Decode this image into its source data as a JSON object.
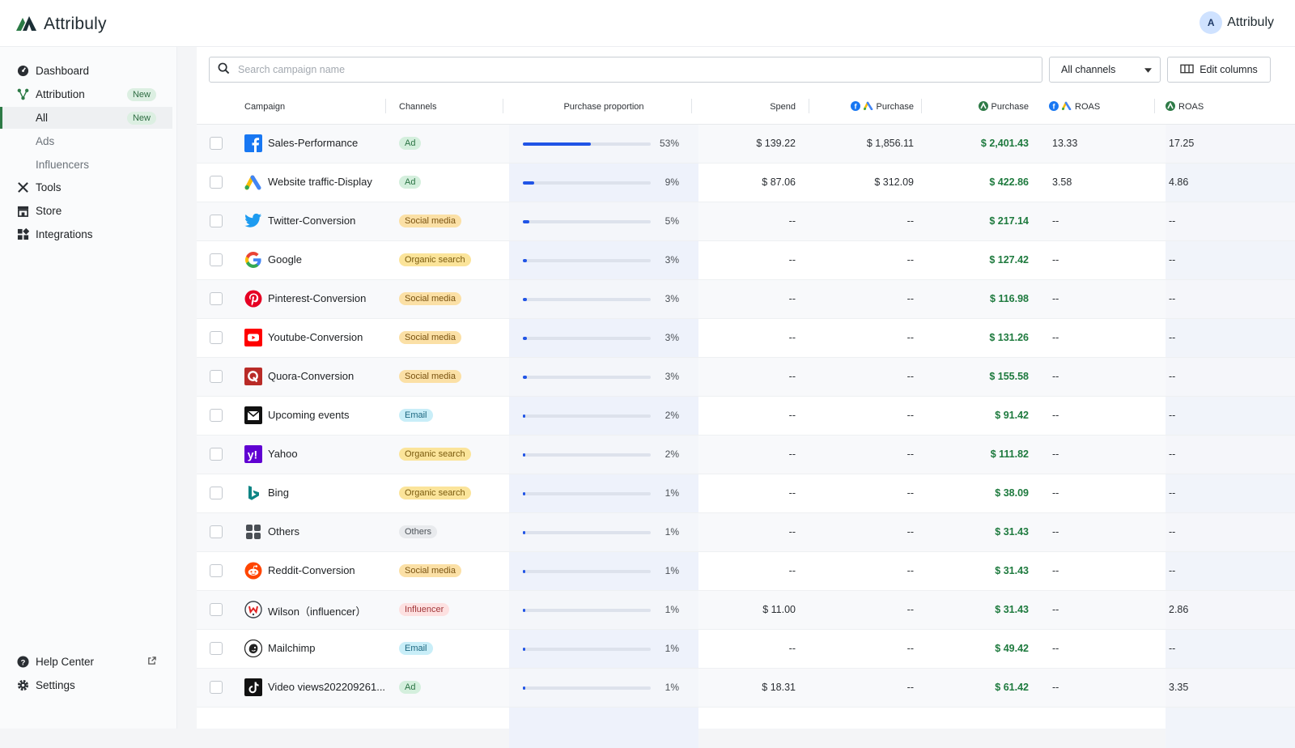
{
  "app": {
    "name": "Attribuly",
    "user_initial": "A",
    "user_name": "Attribuly"
  },
  "colors": {
    "accent": "#2054e6",
    "brand_green": "#2d7a46",
    "positive": "#1e7a3e"
  },
  "sidebar": {
    "items": [
      {
        "label": "Dashboard",
        "icon": "dashboard-icon"
      },
      {
        "label": "Attribution",
        "icon": "attribution-icon",
        "badge": "New"
      },
      {
        "label": "All",
        "badge": "New",
        "active": true
      },
      {
        "label": "Ads"
      },
      {
        "label": "Influencers"
      },
      {
        "label": "Tools",
        "icon": "tools-icon"
      },
      {
        "label": "Store",
        "icon": "store-icon"
      },
      {
        "label": "Integrations",
        "icon": "integrations-icon"
      }
    ],
    "bottom": [
      {
        "label": "Help Center",
        "icon": "help-icon"
      },
      {
        "label": "Settings",
        "icon": "gear-icon"
      }
    ]
  },
  "toolbar": {
    "search_placeholder": "Search campaign name",
    "channel_select": "All channels",
    "edit_columns": "Edit columns"
  },
  "table": {
    "headers": {
      "campaign": "Campaign",
      "channels": "Channels",
      "purchase_proportion": "Purchase proportion",
      "spend": "Spend",
      "platform_purchase": "Purchase",
      "purchase": "Purchase",
      "platform_roas": "ROAS",
      "roas": "ROAS"
    },
    "rows": [
      {
        "campaign": "Sales-Performance",
        "icon": "facebook-icon",
        "channel": "Ad",
        "proportion": 53,
        "proportion_label": "53%",
        "spend": "$ 139.22",
        "platform_purchase": "$ 1,856.11",
        "purchase": "$ 2,401.43",
        "platform_roas": "13.33",
        "roas": "17.25"
      },
      {
        "campaign": "Website traffic-Display",
        "icon": "google-ads-icon",
        "channel": "Ad",
        "proportion": 9,
        "proportion_label": "9%",
        "spend": "$ 87.06",
        "platform_purchase": "$ 312.09",
        "purchase": "$ 422.86",
        "platform_roas": "3.58",
        "roas": "4.86"
      },
      {
        "campaign": "Twitter-Conversion",
        "icon": "twitter-icon",
        "channel": "Social media",
        "proportion": 5,
        "proportion_label": "5%",
        "spend": "--",
        "platform_purchase": "--",
        "purchase": "$ 217.14",
        "platform_roas": "--",
        "roas": "--"
      },
      {
        "campaign": "Google",
        "icon": "google-icon",
        "channel": "Organic search",
        "proportion": 3,
        "proportion_label": "3%",
        "spend": "--",
        "platform_purchase": "--",
        "purchase": "$ 127.42",
        "platform_roas": "--",
        "roas": "--"
      },
      {
        "campaign": "Pinterest-Conversion",
        "icon": "pinterest-icon",
        "channel": "Social media",
        "proportion": 3,
        "proportion_label": "3%",
        "spend": "--",
        "platform_purchase": "--",
        "purchase": "$ 116.98",
        "platform_roas": "--",
        "roas": "--"
      },
      {
        "campaign": "Youtube-Conversion",
        "icon": "youtube-icon",
        "channel": "Social media",
        "proportion": 3,
        "proportion_label": "3%",
        "spend": "--",
        "platform_purchase": "--",
        "purchase": "$ 131.26",
        "platform_roas": "--",
        "roas": "--"
      },
      {
        "campaign": "Quora-Conversion",
        "icon": "quora-icon",
        "channel": "Social media",
        "proportion": 3,
        "proportion_label": "3%",
        "spend": "--",
        "platform_purchase": "--",
        "purchase": "$ 155.58",
        "platform_roas": "--",
        "roas": "--"
      },
      {
        "campaign": "Upcoming events",
        "icon": "email-icon",
        "channel": "Email",
        "proportion": 2,
        "proportion_label": "2%",
        "spend": "--",
        "platform_purchase": "--",
        "purchase": "$ 91.42",
        "platform_roas": "--",
        "roas": "--"
      },
      {
        "campaign": "Yahoo",
        "icon": "yahoo-icon",
        "channel": "Organic search",
        "proportion": 2,
        "proportion_label": "2%",
        "spend": "--",
        "platform_purchase": "--",
        "purchase": "$ 111.82",
        "platform_roas": "--",
        "roas": "--"
      },
      {
        "campaign": "Bing",
        "icon": "bing-icon",
        "channel": "Organic search",
        "proportion": 1,
        "proportion_label": "1%",
        "spend": "--",
        "platform_purchase": "--",
        "purchase": "$ 38.09",
        "platform_roas": "--",
        "roas": "--"
      },
      {
        "campaign": "Others",
        "icon": "others-icon",
        "channel": "Others",
        "proportion": 1,
        "proportion_label": "1%",
        "spend": "--",
        "platform_purchase": "--",
        "purchase": "$ 31.43",
        "platform_roas": "--",
        "roas": "--"
      },
      {
        "campaign": "Reddit-Conversion",
        "icon": "reddit-icon",
        "channel": "Social media",
        "proportion": 1,
        "proportion_label": "1%",
        "spend": "--",
        "platform_purchase": "--",
        "purchase": "$ 31.43",
        "platform_roas": "--",
        "roas": "--"
      },
      {
        "campaign": "Wilson（influencer）",
        "icon": "influencer-icon",
        "channel": "Influencer",
        "proportion": 1,
        "proportion_label": "1%",
        "spend": "$ 11.00",
        "platform_purchase": "--",
        "purchase": "$ 31.43",
        "platform_roas": "--",
        "roas": "2.86"
      },
      {
        "campaign": "Mailchimp",
        "icon": "mailchimp-icon",
        "channel": "Email",
        "proportion": 1,
        "proportion_label": "1%",
        "spend": "--",
        "platform_purchase": "--",
        "purchase": "$ 49.42",
        "platform_roas": "--",
        "roas": "--"
      },
      {
        "campaign": "Video views202209261...",
        "icon": "tiktok-icon",
        "channel": "Ad",
        "proportion": 1,
        "proportion_label": "1%",
        "spend": "$ 18.31",
        "platform_purchase": "--",
        "purchase": "$ 61.42",
        "platform_roas": "--",
        "roas": "3.35"
      }
    ]
  },
  "channel_colors": {
    "Ad": {
      "bg": "#d4efdd",
      "fg": "#2a7343"
    },
    "Social media": {
      "bg": "#fbe0a6",
      "fg": "#7a5311"
    },
    "Organic search": {
      "bg": "#fbe49a",
      "fg": "#7a5a0d"
    },
    "Email": {
      "bg": "#c9eef8",
      "fg": "#1b6780"
    },
    "Others": {
      "bg": "#e8eaed",
      "fg": "#4b5157"
    },
    "Influencer": {
      "bg": "#fde1e1",
      "fg": "#a2373a"
    }
  }
}
